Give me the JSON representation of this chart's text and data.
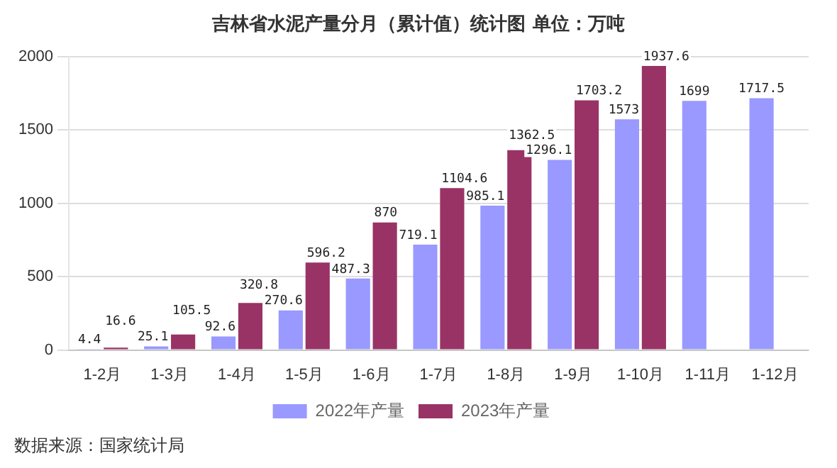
{
  "chart_data": {
    "type": "bar",
    "title": "吉林省水泥产量分月（累计值）统计图 单位：万吨",
    "categories": [
      "1-2月",
      "1-3月",
      "1-4月",
      "1-5月",
      "1-6月",
      "1-7月",
      "1-8月",
      "1-9月",
      "1-10月",
      "1-11月",
      "1-12月"
    ],
    "series": [
      {
        "name": "2022年产量",
        "color": "#9999ff",
        "values": [
          4.4,
          25.1,
          92.6,
          270.6,
          487.3,
          719.1,
          985.1,
          1296.1,
          1573,
          1699,
          1717.5
        ]
      },
      {
        "name": "2023年产量",
        "color": "#993366",
        "values": [
          16.6,
          105.5,
          320.8,
          596.2,
          870,
          1104.6,
          1362.5,
          1703.2,
          1937.6,
          null,
          null
        ]
      }
    ],
    "ylim": [
      0,
      2000
    ],
    "yticks": [
      0,
      500,
      1000,
      1500,
      2000
    ],
    "grid": "y",
    "legend": "bottom",
    "data_labels": true,
    "annotations": [
      "数据来源：国家统计局"
    ]
  }
}
